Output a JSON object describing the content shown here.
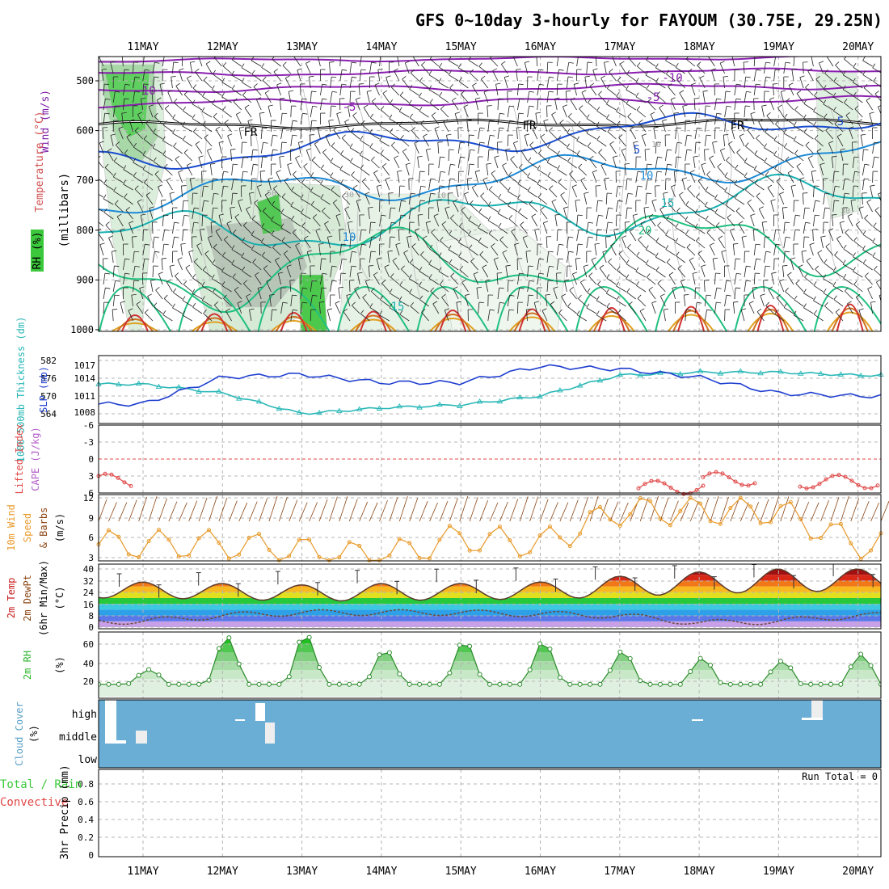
{
  "title": "GFS 0~10day 3-hourly for FAYOUM (30.75E, 29.25N)",
  "dates": [
    "11MAY",
    "12MAY",
    "13MAY",
    "14MAY",
    "15MAY",
    "16MAY",
    "17MAY",
    "18MAY",
    "19MAY",
    "20MAY"
  ],
  "panels": {
    "upper_air": {
      "labels": {
        "wind": "Wind (m/s)",
        "temperature": "Temperature (°C)",
        "rh": "RH (%)",
        "unit": "(millibars)"
      },
      "yticks": [
        500,
        600,
        700,
        800,
        900,
        1000
      ],
      "isotherm_labels": [
        "-10",
        "-10",
        "-5",
        "-5",
        "FR",
        "FR",
        "FR",
        "5",
        "5",
        "10",
        "10",
        "15",
        "15",
        "20"
      ],
      "rh_labels": [
        "50",
        "30",
        "10",
        "10",
        "30"
      ]
    },
    "slp": {
      "label_thickness": "1000-500mb Thickness (dm)",
      "label_slp": "SLP (mb)",
      "left_ticks": [
        "582",
        "576",
        "570",
        "564"
      ],
      "right_ticks": [
        "1017",
        "1014",
        "1011",
        "1008"
      ]
    },
    "cape": {
      "label_li": "Lifted Index",
      "label_cape": "CAPE (J/kg)",
      "ticks": [
        "-6",
        "-3",
        "0",
        "3",
        "6"
      ]
    },
    "wind10m": {
      "label1": "10m Wind",
      "label2": "Speed",
      "label3": "& Barbs",
      "unit": "(m/s)",
      "ticks": [
        "12",
        "9",
        "6",
        "3"
      ]
    },
    "temp2m": {
      "label1": "2m Temp",
      "label2": "2m DewPt",
      "label3": "(6hr Min/Max)",
      "unit": "(°C)",
      "ticks": [
        "40",
        "32",
        "24",
        "16",
        "8",
        "0"
      ]
    },
    "rh2m": {
      "label": "2m RH",
      "unit": "(%)",
      "ticks": [
        "60",
        "40",
        "20"
      ]
    },
    "cloud": {
      "label": "Cloud Cover",
      "unit": "(%)",
      "levels": [
        "high",
        "middle",
        "low"
      ]
    },
    "precip": {
      "label1": "Total / Rain",
      "label2": "Convective",
      "label3": "3hr Precip (mm)",
      "run_total": "Run Total = 0",
      "ticks": [
        "0.8",
        "0.6",
        "0.4",
        "0.2",
        "0"
      ]
    }
  },
  "colors": {
    "rh_green": "#3cc83c",
    "sky_blue": "#6aaed6",
    "slp_blue": "#1f3fd0",
    "thickness_cyan": "#2ab7b7",
    "li_red": "#e04848",
    "wind_orange": "#e89a2a",
    "rh_line": "#2a8a2a"
  },
  "chart_data": [
    {
      "type": "line",
      "title": "1000-500mb Thickness / SLP",
      "x": [
        "11MAY",
        "12MAY",
        "13MAY",
        "14MAY",
        "15MAY",
        "16MAY",
        "17MAY",
        "18MAY",
        "19MAY",
        "20MAY"
      ],
      "series": [
        {
          "name": "SLP (mb)",
          "values": [
            1009.5,
            1014.5,
            1015.0,
            1013.5,
            1013.5,
            1016.5,
            1016.0,
            1014.5,
            1011.5,
            1011.0
          ]
        },
        {
          "name": "1000-500mb Thickness (dm)",
          "values": [
            574,
            571,
            564,
            566,
            567,
            570,
            577,
            578,
            578,
            577
          ]
        }
      ]
    },
    {
      "type": "line",
      "title": "Lifted Index",
      "x": [
        "11MAY",
        "12MAY",
        "13MAY",
        "14MAY",
        "15MAY",
        "16MAY",
        "17MAY",
        "18MAY",
        "19MAY",
        "20MAY"
      ],
      "series": [
        {
          "name": "Lifted Index",
          "values": [
            4.5,
            6.5,
            6.5,
            6.5,
            6.5,
            6.5,
            6.5,
            5.5,
            4.0,
            5.0
          ]
        }
      ],
      "ylim": [
        -6,
        6
      ]
    },
    {
      "type": "line",
      "title": "10m Wind Speed",
      "x": [
        "11MAY",
        "12MAY",
        "13MAY",
        "14MAY",
        "15MAY",
        "16MAY",
        "17MAY",
        "18MAY",
        "19MAY",
        "20MAY"
      ],
      "series": [
        {
          "name": "10m Wind Speed (m/s)",
          "values": [
            5,
            5,
            4,
            3,
            6,
            5,
            10,
            10,
            10,
            5
          ]
        }
      ],
      "ylim": [
        2,
        12
      ]
    },
    {
      "type": "area",
      "title": "2m Temp",
      "x": [
        "11MAY",
        "12MAY",
        "13MAY",
        "14MAY",
        "15MAY",
        "16MAY",
        "17MAY",
        "18MAY",
        "19MAY",
        "20MAY"
      ],
      "series": [
        {
          "name": "2m Temp max (°C)",
          "values": [
            31,
            30,
            29,
            30,
            30,
            31,
            35,
            38,
            40,
            40
          ]
        },
        {
          "name": "2m Temp min (°C)",
          "values": [
            20,
            19,
            18,
            18,
            19,
            19,
            21,
            23,
            24,
            25
          ]
        },
        {
          "name": "2m DewPt (°C)",
          "values": [
            4,
            8,
            10,
            10,
            10,
            9,
            8,
            3,
            4,
            8
          ]
        }
      ],
      "ylim": [
        0,
        42
      ]
    },
    {
      "type": "area",
      "title": "2m RH",
      "x": [
        "11MAY",
        "12MAY",
        "13MAY",
        "14MAY",
        "15MAY",
        "16MAY",
        "17MAY",
        "18MAY",
        "19MAY",
        "20MAY"
      ],
      "series": [
        {
          "name": "2m RH max (%)",
          "values": [
            28,
            68,
            72,
            52,
            63,
            63,
            52,
            44,
            40,
            48
          ]
        }
      ],
      "ylim": [
        0,
        75
      ]
    },
    {
      "type": "bar",
      "title": "3hr Precip",
      "x": [
        "11MAY",
        "12MAY",
        "13MAY",
        "14MAY",
        "15MAY",
        "16MAY",
        "17MAY",
        "18MAY",
        "19MAY",
        "20MAY"
      ],
      "series": [
        {
          "name": "3hr Precip (mm)",
          "values": [
            0,
            0,
            0,
            0,
            0,
            0,
            0,
            0,
            0,
            0
          ]
        }
      ],
      "ylim": [
        0,
        0.9
      ]
    }
  ]
}
